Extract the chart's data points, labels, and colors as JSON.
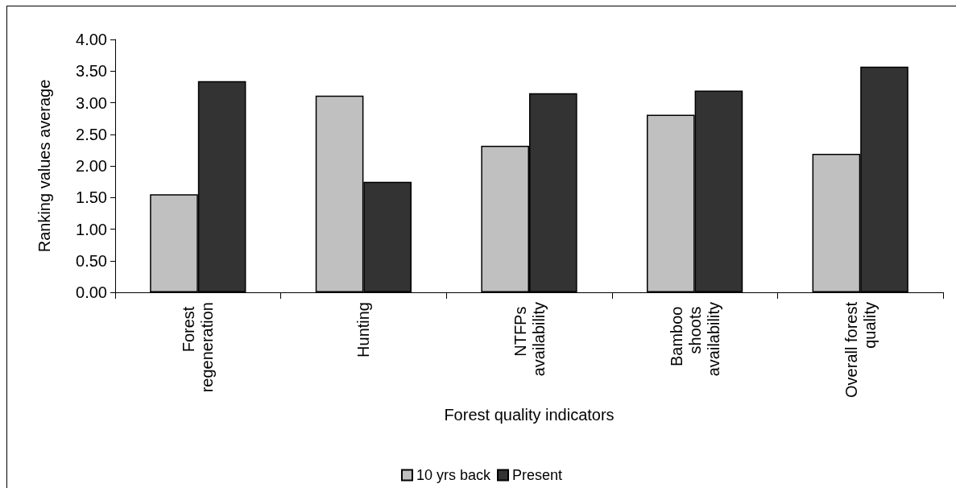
{
  "chart_data": {
    "type": "bar",
    "xlabel": "Forest quality indicators",
    "ylabel": "Ranking values average",
    "categories": [
      "Forest regeneration",
      "Hunting",
      "NTFPs availability",
      "Bamboo shoots availability",
      "Overall forest quality"
    ],
    "series": [
      {
        "name": "10 yrs back",
        "color": "#c0c0c0",
        "values": [
          1.55,
          3.11,
          2.32,
          2.81,
          2.19
        ]
      },
      {
        "name": "Present",
        "color": "#333333",
        "values": [
          3.34,
          1.75,
          3.15,
          3.19,
          3.57
        ]
      }
    ],
    "ylim": [
      0,
      4
    ],
    "yticks": [
      {
        "value": 0,
        "label": "0.00"
      },
      {
        "value": 0.5,
        "label": "0.50"
      },
      {
        "value": 1,
        "label": "1.00"
      },
      {
        "value": 1.5,
        "label": "1.50"
      },
      {
        "value": 2,
        "label": "2.00"
      },
      {
        "value": 2.5,
        "label": "2.50"
      },
      {
        "value": 3,
        "label": "3.00"
      },
      {
        "value": 3.5,
        "label": "3.50"
      },
      {
        "value": 4,
        "label": "4.00"
      }
    ],
    "grid": false,
    "legend": "bottom"
  }
}
